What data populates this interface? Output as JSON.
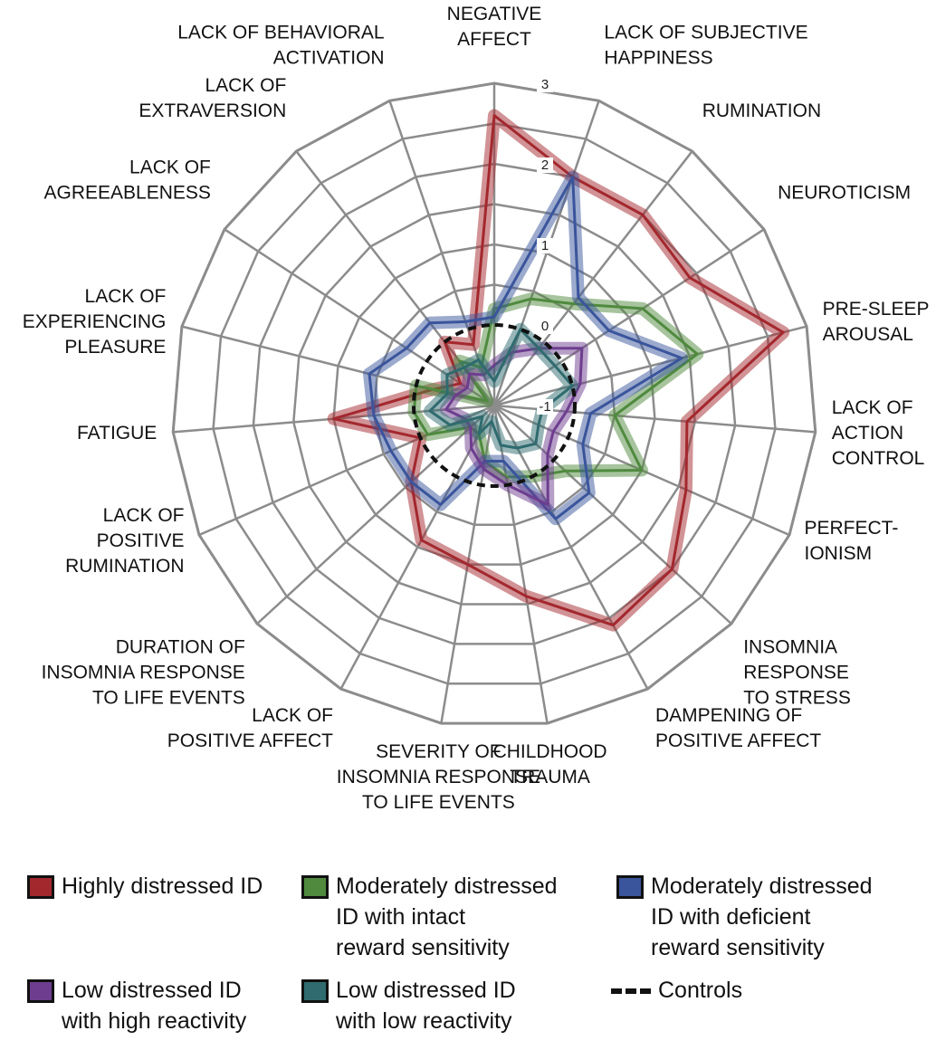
{
  "chart_data": {
    "type": "radar",
    "r_range": [
      -1,
      3
    ],
    "ticks": [
      -1,
      0,
      1,
      2,
      3
    ],
    "axes": [
      "NEGATIVE\nAFFECT",
      "LACK OF SUBJECTIVE\nHAPPINESS",
      "RUMINATION",
      "NEUROTICISM",
      "PRE-SLEEP\nAROUSAL",
      "LACK OF\nACTION\nCONTROL",
      "PERFECT-\nIONISM",
      "INSOMNIA\nRESPONSE\nTO STRESS",
      "DAMPENING OF\nPOSITIVE AFFECT",
      "CHILDHOOD\nTRAUMA",
      "SEVERITY OF\nINSOMNIA RESPONSE\nTO LIFE EVENTS",
      "LACK OF\nPOSITIVE AFFECT",
      "DURATION OF\nINSOMNIA RESPONSE\nTO LIFE EVENTS",
      "LACK OF\nPOSITIVE\nRUMINATION",
      "FATIGUE",
      "LACK OF\nEXPERIENCING\nPLEASURE",
      "LACK OF\nAGREEABLENESS",
      "LACK OF\nEXTRAVERSION",
      "LACK OF BEHAVIORAL\nACTIVATION"
    ],
    "series": [
      {
        "name": "Highly distressed ID",
        "color": "#a3282e",
        "values": [
          2.6,
          2.0,
          2.0,
          1.9,
          2.7,
          1.4,
          1.6,
          2.0,
          2.1,
          1.4,
          1.0,
          0.9,
          0.4,
          0.0,
          1.0,
          -0.2,
          -0.5,
          0.0,
          -0.2
        ]
      },
      {
        "name": "Moderately distressed ID with intact reward sensitivity",
        "color": "#4f8a3e",
        "values": [
          0.2,
          0.4,
          0.6,
          1.2,
          1.6,
          0.5,
          1.0,
          0.2,
          0.0,
          -0.1,
          -0.3,
          -0.6,
          -0.6,
          -0.1,
          0.0,
          0.0,
          -0.9,
          -0.3,
          -0.5
        ]
      },
      {
        "name": "Moderately distressed ID with deficient reward sensitivity",
        "color": "#3a559c",
        "values": [
          0.1,
          2.0,
          0.7,
          0.7,
          1.4,
          0.2,
          0.2,
          0.6,
          0.6,
          -0.3,
          -0.3,
          0.4,
          0.4,
          0.4,
          0.5,
          0.6,
          0.3,
          0.3,
          0.1
        ]
      },
      {
        "name": "Low distressed ID with high reactivity",
        "color": "#6e3d8f",
        "values": [
          -0.5,
          -0.3,
          -0.1,
          0.3,
          0.1,
          -0.1,
          -0.2,
          -0.1,
          0.4,
          0.0,
          -0.2,
          -0.4,
          -0.6,
          -0.6,
          -0.4,
          -0.5,
          -0.6,
          -0.5,
          -0.6
        ]
      },
      {
        "name": "Low distressed ID with low reactivity",
        "color": "#2f6b6f",
        "values": [
          -0.7,
          0.0,
          -0.1,
          -0.1,
          0.0,
          -0.4,
          -0.4,
          -0.3,
          -0.4,
          -0.5,
          -0.8,
          -0.6,
          -0.8,
          -0.4,
          -0.2,
          -0.4,
          -0.3,
          -0.4,
          -0.4
        ]
      }
    ],
    "controls": {
      "name": "Controls",
      "value": 0
    }
  },
  "legend": [
    {
      "label": "Highly distressed ID",
      "color": "#a3282e"
    },
    {
      "label": "Moderately distressed\nID with intact\nreward sensitivity",
      "color": "#4f8a3e"
    },
    {
      "label": "Moderately distressed\nID with deficient\nreward sensitivity",
      "color": "#3a559c"
    },
    {
      "label": "Low distressed ID\nwith high reactivity",
      "color": "#6e3d8f"
    },
    {
      "label": "Low distressed ID\nwith low reactivity",
      "color": "#2f6b6f"
    },
    {
      "label": "Controls"
    }
  ]
}
